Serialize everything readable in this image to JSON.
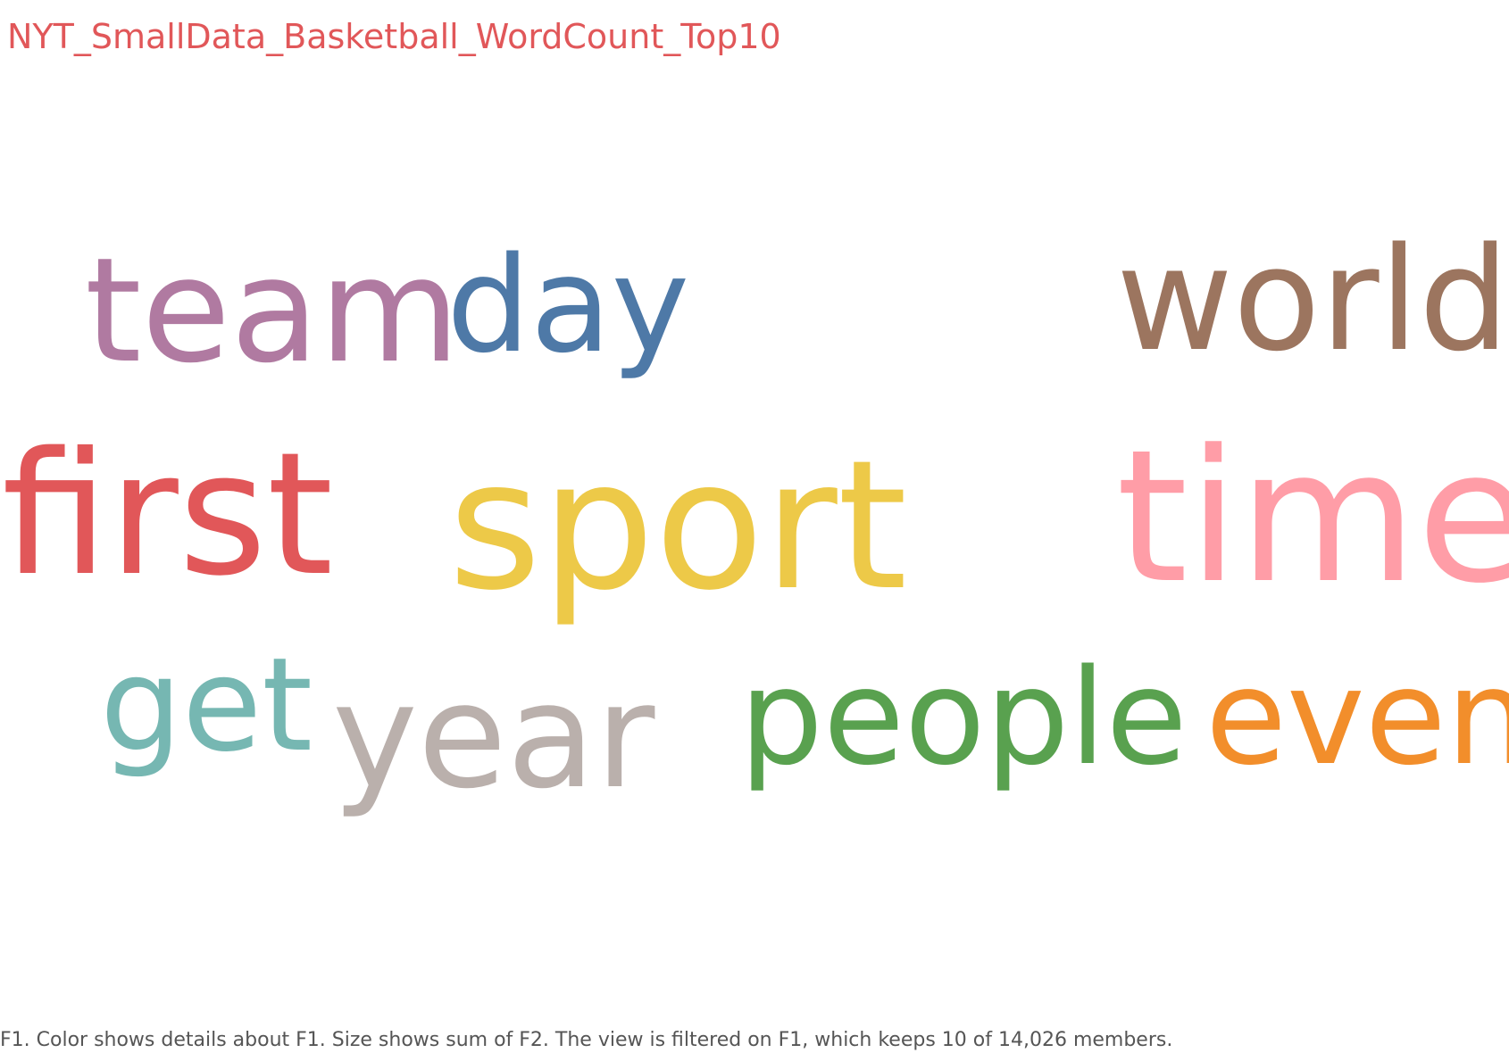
{
  "title": "NYT_SmallData_Basketball_WordCount_Top10",
  "caption": "F1.  Color shows details about F1.  Size shows sum of F2. The view is filtered on F1, which keeps 10 of 14,026 members.",
  "colors": {
    "title": "#e15759",
    "caption": "#555555"
  },
  "chart_data": {
    "type": "wordcloud",
    "title": "NYT_SmallData_Basketball_WordCount_Top10",
    "words": [
      {
        "text": "team",
        "color": "#b07aa1"
      },
      {
        "text": "day",
        "color": "#4e79a7"
      },
      {
        "text": "world",
        "color": "#9c755f"
      },
      {
        "text": "first",
        "color": "#e15759"
      },
      {
        "text": "sport",
        "color": "#edc948"
      },
      {
        "text": "time",
        "color": "#ff9da7"
      },
      {
        "text": "get",
        "color": "#76b7b2"
      },
      {
        "text": "year",
        "color": "#bab0ac"
      },
      {
        "text": "people",
        "color": "#59a14f"
      },
      {
        "text": "even",
        "color": "#f28e2b"
      }
    ]
  }
}
